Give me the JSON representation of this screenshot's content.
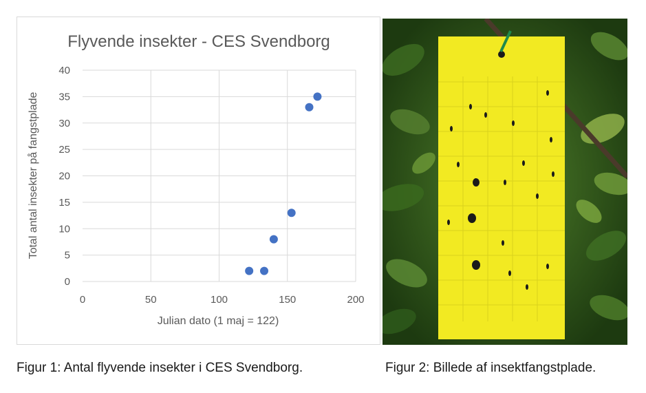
{
  "chart_data": {
    "type": "scatter",
    "title": "Flyvende insekter - CES Svendborg",
    "xlabel": "Julian dato (1 maj = 122)",
    "ylabel": "Total antal insekter på fangstplade",
    "xlim": [
      0,
      200
    ],
    "ylim": [
      0,
      40
    ],
    "xticks": [
      0,
      50,
      100,
      150,
      200
    ],
    "yticks": [
      0,
      5,
      10,
      15,
      20,
      25,
      30,
      35,
      40
    ],
    "grid": true,
    "marker_color": "#4472C4",
    "points": [
      {
        "x": 122,
        "y": 2
      },
      {
        "x": 133,
        "y": 2
      },
      {
        "x": 140,
        "y": 8
      },
      {
        "x": 153,
        "y": 13
      },
      {
        "x": 166,
        "y": 33
      },
      {
        "x": 172,
        "y": 35
      }
    ]
  },
  "captions": {
    "figure1": "Figur 1: Antal flyvende insekter i CES Svendborg.",
    "figure2": "Figur 2: Billede af insektfangstplade."
  },
  "photo": {
    "subject": "yellow insect sticky trap hanging in green foliage",
    "trap_color": "#f2ea22",
    "foliage_color": "#2f5a1c"
  }
}
